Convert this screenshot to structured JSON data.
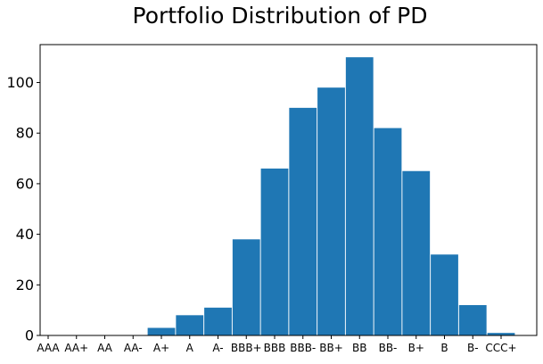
{
  "chart_data": {
    "type": "bar",
    "title": "Portfolio Distribution of PD",
    "xlabel": "",
    "ylabel": "",
    "categories": [
      "AAA",
      "AA+",
      "AA",
      "AA-",
      "A+",
      "A",
      "A-",
      "BBB+",
      "BBB",
      "BBB-",
      "BB+",
      "BB",
      "BB-",
      "B+",
      "B",
      "B-",
      "CCC+"
    ],
    "values": [
      0,
      0,
      0,
      0,
      3,
      8,
      11,
      38,
      66,
      90,
      98,
      110,
      82,
      65,
      32,
      12,
      1
    ],
    "ylim": [
      0,
      115
    ],
    "yticks": [
      0,
      20,
      40,
      60,
      80,
      100
    ],
    "bar_color": "#1f77b4",
    "grid": false,
    "legend": "none"
  }
}
